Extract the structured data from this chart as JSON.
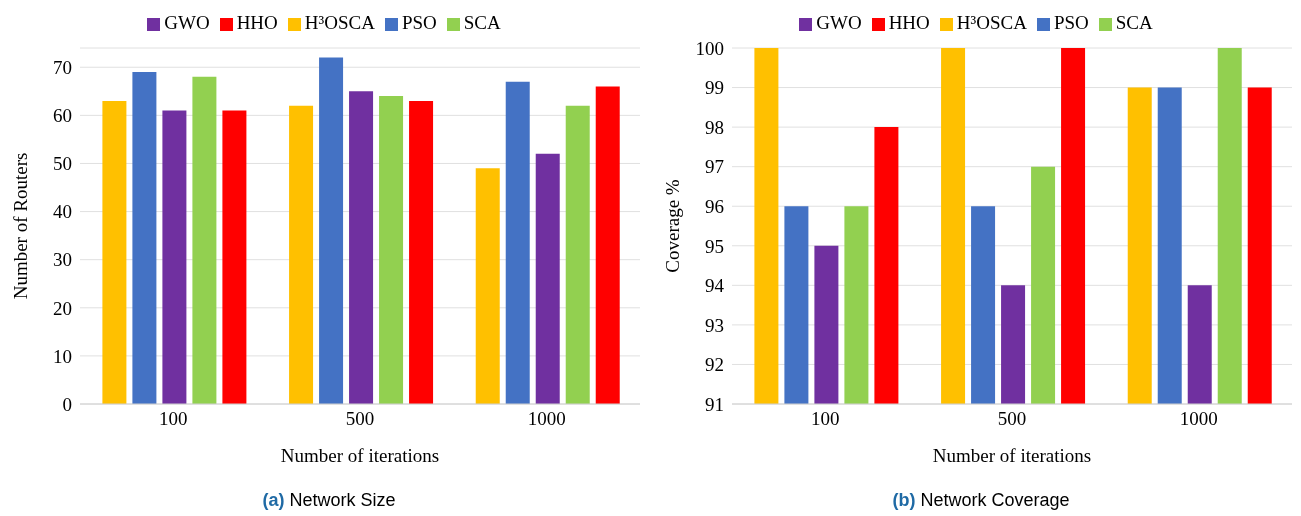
{
  "chart_data": [
    {
      "type": "bar",
      "title": "(a) Network Size",
      "xlabel": "Number of iterations",
      "ylabel": "Number of Routers",
      "categories": [
        "100",
        "500",
        "1000"
      ],
      "series": [
        {
          "name": "H³OSCA",
          "color": "#ffc000",
          "values": [
            63,
            62,
            49
          ]
        },
        {
          "name": "PSO",
          "color": "#4472c4",
          "values": [
            69,
            72,
            67
          ]
        },
        {
          "name": "GWO",
          "color": "#7030a0",
          "values": [
            61,
            65,
            52
          ]
        },
        {
          "name": "SCA",
          "color": "#92d050",
          "values": [
            68,
            64,
            62
          ]
        },
        {
          "name": "HHO",
          "color": "#ff0000",
          "values": [
            61,
            63,
            66
          ]
        }
      ],
      "ylim": [
        0,
        74
      ],
      "yticks": [
        0,
        10,
        20,
        30,
        40,
        50,
        60,
        70
      ],
      "grid": "y",
      "legend": "top"
    },
    {
      "type": "bar",
      "title": "(b) Network Coverage",
      "xlabel": "Number of iterations",
      "ylabel": "Coverage %",
      "categories": [
        "100",
        "500",
        "1000"
      ],
      "series": [
        {
          "name": "H³OSCA",
          "color": "#ffc000",
          "values": [
            100,
            100,
            99
          ]
        },
        {
          "name": "PSO",
          "color": "#4472c4",
          "values": [
            96,
            96,
            99
          ]
        },
        {
          "name": "GWO",
          "color": "#7030a0",
          "values": [
            95,
            94,
            94
          ]
        },
        {
          "name": "SCA",
          "color": "#92d050",
          "values": [
            96,
            97,
            100
          ]
        },
        {
          "name": "HHO",
          "color": "#ff0000",
          "values": [
            98,
            100,
            99
          ]
        }
      ],
      "ylim": [
        91,
        100
      ],
      "yticks": [
        91,
        92,
        93,
        94,
        95,
        96,
        97,
        98,
        99,
        100
      ],
      "grid": "y",
      "legend": "top"
    }
  ]
}
